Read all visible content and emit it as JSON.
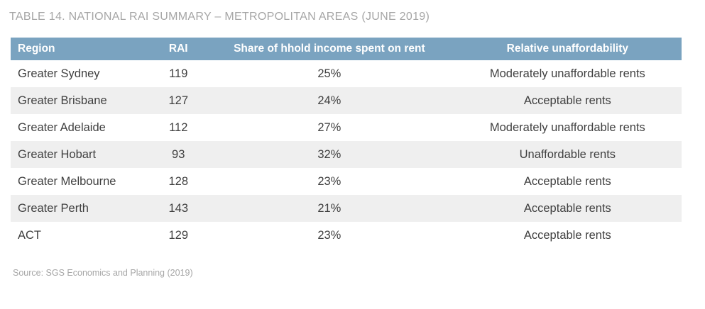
{
  "title": "TABLE 14. NATIONAL RAI SUMMARY – METROPOLITAN AREAS (JUNE 2019)",
  "source": "Source: SGS Economics and Planning (2019)",
  "colors": {
    "header_bg": "#7aa3c0",
    "header_text": "#ffffff",
    "stripe_bg": "#efefef",
    "body_text": "#3f3f3f",
    "muted_text": "#a6a6a6"
  },
  "chart_data": {
    "type": "table",
    "title": "TABLE 14. NATIONAL RAI SUMMARY – METROPOLITAN AREAS (JUNE 2019)",
    "columns": [
      "Region",
      "RAI",
      "Share of hhold income spent on rent",
      "Relative unaffordability"
    ],
    "rows": [
      [
        "Greater Sydney",
        "119",
        "25%",
        "Moderately unaffordable rents"
      ],
      [
        "Greater Brisbane",
        "127",
        "24%",
        "Acceptable rents"
      ],
      [
        "Greater Adelaide",
        "112",
        "27%",
        "Moderately unaffordable rents"
      ],
      [
        "Greater Hobart",
        "93",
        "32%",
        "Unaffordable rents"
      ],
      [
        "Greater Melbourne",
        "128",
        "23%",
        "Acceptable rents"
      ],
      [
        "Greater Perth",
        "143",
        "21%",
        "Acceptable rents"
      ],
      [
        "ACT",
        "129",
        "23%",
        "Acceptable rents"
      ]
    ],
    "source": "Source: SGS Economics and Planning (2019)",
    "layout": {
      "stripe_rows": [
        1,
        3,
        5
      ],
      "grid": false
    }
  }
}
